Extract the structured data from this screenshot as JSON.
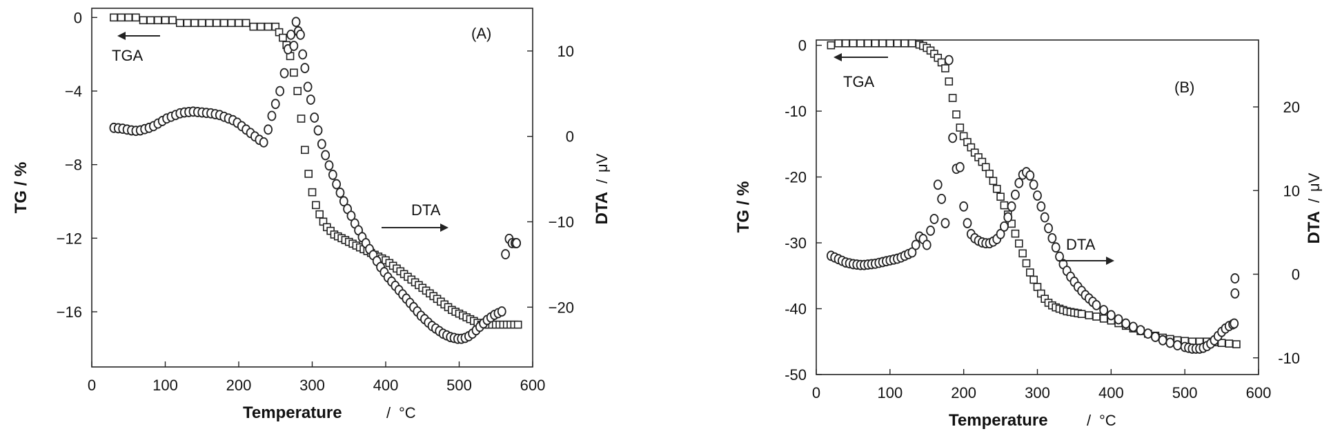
{
  "chart_data": [
    {
      "type": "scatter",
      "panel_label": "(A)",
      "xlabel": "Temperature",
      "xunit": "°C",
      "ylabel": "TG / %",
      "y2label": "DTA",
      "y2unit": "μV",
      "xlim": [
        0,
        600
      ],
      "ylim": [
        -19,
        0.5
      ],
      "y2lim": [
        -27,
        15
      ],
      "xticks": [
        "0",
        "100",
        "200",
        "300",
        "400",
        "500",
        "600"
      ],
      "yticks": [
        "0",
        "−4",
        "−8",
        "−12",
        "−16"
      ],
      "y2ticks": [
        "10",
        "0",
        "−10",
        "−20"
      ],
      "annotations": [
        {
          "text": "TGA",
          "arrow": "left"
        },
        {
          "text": "DTA",
          "arrow": "right"
        }
      ],
      "series": [
        {
          "name": "TGA",
          "marker": "square",
          "axis": "left",
          "x": [
            30,
            40,
            50,
            60,
            70,
            80,
            90,
            100,
            110,
            120,
            130,
            140,
            150,
            160,
            170,
            180,
            190,
            200,
            210,
            220,
            230,
            240,
            250,
            255,
            260,
            265,
            270,
            275,
            280,
            285,
            290,
            295,
            300,
            305,
            310,
            315,
            320,
            325,
            330,
            335,
            340,
            345,
            350,
            355,
            360,
            365,
            370,
            375,
            380,
            385,
            390,
            395,
            400,
            405,
            410,
            415,
            420,
            425,
            430,
            435,
            440,
            445,
            450,
            455,
            460,
            465,
            470,
            475,
            480,
            485,
            490,
            495,
            500,
            505,
            510,
            515,
            520,
            525,
            530,
            535,
            540,
            545,
            550,
            555,
            560,
            565,
            570,
            575,
            580
          ],
          "y": [
            0,
            0,
            0,
            0,
            -0.15,
            -0.15,
            -0.15,
            -0.15,
            -0.15,
            -0.3,
            -0.3,
            -0.3,
            -0.3,
            -0.3,
            -0.3,
            -0.3,
            -0.3,
            -0.3,
            -0.3,
            -0.5,
            -0.5,
            -0.5,
            -0.5,
            -0.8,
            -1.1,
            -1.5,
            -2.1,
            -3.0,
            -4.0,
            -5.5,
            -7.2,
            -8.5,
            -9.5,
            -10.2,
            -10.7,
            -11.1,
            -11.4,
            -11.6,
            -11.8,
            -11.9,
            -12.0,
            -12.1,
            -12.2,
            -12.3,
            -12.4,
            -12.5,
            -12.6,
            -12.7,
            -12.8,
            -12.9,
            -13.0,
            -13.1,
            -13.2,
            -13.35,
            -13.5,
            -13.65,
            -13.8,
            -13.95,
            -14.1,
            -14.25,
            -14.4,
            -14.55,
            -14.7,
            -14.85,
            -15.0,
            -15.15,
            -15.3,
            -15.45,
            -15.6,
            -15.75,
            -15.9,
            -16.0,
            -16.1,
            -16.2,
            -16.3,
            -16.4,
            -16.5,
            -16.6,
            -16.7,
            -16.7,
            -16.7,
            -16.7,
            -16.7,
            -16.7,
            -16.7,
            -16.7,
            -16.7,
            -16.7,
            -16.7
          ]
        },
        {
          "name": "DTA",
          "marker": "circle",
          "axis": "right",
          "x": [
            30,
            36,
            42,
            48,
            54,
            60,
            66,
            72,
            78,
            84,
            90,
            96,
            102,
            108,
            114,
            120,
            126,
            132,
            138,
            144,
            150,
            156,
            162,
            168,
            174,
            180,
            186,
            192,
            198,
            204,
            210,
            216,
            222,
            228,
            234,
            240,
            245,
            250,
            256,
            262,
            267,
            271,
            275,
            278,
            281,
            284,
            287,
            290,
            294,
            298,
            303,
            308,
            313,
            318,
            323,
            328,
            333,
            338,
            343,
            348,
            353,
            358,
            363,
            368,
            373,
            378,
            383,
            388,
            393,
            398,
            403,
            408,
            413,
            418,
            423,
            428,
            433,
            438,
            443,
            448,
            453,
            458,
            463,
            468,
            473,
            478,
            483,
            488,
            493,
            498,
            503,
            508,
            513,
            518,
            523,
            528,
            533,
            538,
            543,
            548,
            553,
            558,
            563,
            568,
            572,
            576,
            578,
            578
          ],
          "y": [
            1,
            0.95,
            0.9,
            0.8,
            0.7,
            0.65,
            0.7,
            0.85,
            1,
            1.2,
            1.5,
            1.8,
            2.1,
            2.3,
            2.5,
            2.7,
            2.8,
            2.85,
            2.9,
            2.85,
            2.8,
            2.75,
            2.7,
            2.6,
            2.5,
            2.3,
            2.1,
            1.9,
            1.6,
            1.2,
            0.8,
            0.4,
            0,
            -0.4,
            -0.7,
            0.8,
            2.4,
            3.8,
            5.3,
            7.4,
            10.2,
            11.9,
            10.6,
            13.4,
            12.3,
            11.9,
            9.6,
            8.0,
            5.8,
            4.3,
            2.2,
            0.7,
            -0.9,
            -2.2,
            -3.4,
            -4.5,
            -5.6,
            -6.6,
            -7.6,
            -8.5,
            -9.3,
            -10.2,
            -11.0,
            -11.8,
            -12.5,
            -13.2,
            -13.9,
            -14.6,
            -15.3,
            -15.9,
            -16.5,
            -17.0,
            -17.5,
            -18.0,
            -18.5,
            -19.0,
            -19.5,
            -20.0,
            -20.5,
            -21.0,
            -21.4,
            -21.8,
            -22.2,
            -22.5,
            -22.8,
            -23.1,
            -23.3,
            -23.5,
            -23.6,
            -23.7,
            -23.7,
            -23.6,
            -23.4,
            -23.1,
            -22.7,
            -22.3,
            -21.9,
            -21.5,
            -21.2,
            -20.9,
            -20.7,
            -20.5,
            -13.8,
            -12.0,
            -12.5,
            -12.5,
            -12.5,
            -12.5
          ]
        }
      ]
    },
    {
      "type": "scatter",
      "panel_label": "(B)",
      "xlabel": "Temperature",
      "xunit": "°C",
      "ylabel": "TG / %",
      "y2label": "DTA",
      "y2unit": "μV",
      "xlim": [
        0,
        600
      ],
      "ylim": [
        -50,
        0.8
      ],
      "y2lim": [
        -12,
        28
      ],
      "xticks": [
        "0",
        "100",
        "200",
        "300",
        "400",
        "500",
        "600"
      ],
      "yticks": [
        "0",
        "-10",
        "-20",
        "-30",
        "-40",
        "-50"
      ],
      "y2ticks": [
        "20",
        "10",
        "0",
        "-10"
      ],
      "annotations": [
        {
          "text": "TGA",
          "arrow": "left"
        },
        {
          "text": "DTA",
          "arrow": "right"
        }
      ],
      "series": [
        {
          "name": "TGA",
          "marker": "square",
          "axis": "left",
          "x": [
            20,
            30,
            40,
            50,
            60,
            70,
            80,
            90,
            100,
            110,
            120,
            130,
            140,
            145,
            150,
            155,
            160,
            165,
            170,
            175,
            180,
            185,
            190,
            195,
            200,
            205,
            210,
            215,
            220,
            225,
            230,
            235,
            240,
            245,
            250,
            255,
            260,
            265,
            270,
            275,
            280,
            285,
            290,
            295,
            300,
            305,
            310,
            315,
            320,
            325,
            330,
            335,
            340,
            345,
            350,
            355,
            360,
            370,
            380,
            390,
            400,
            410,
            420,
            430,
            440,
            450,
            460,
            470,
            480,
            490,
            500,
            510,
            520,
            530,
            540,
            550,
            560,
            570
          ],
          "y": [
            0,
            0.3,
            0.3,
            0.3,
            0.3,
            0.3,
            0.3,
            0.3,
            0.3,
            0.3,
            0.3,
            0.3,
            0.1,
            -0.1,
            -0.4,
            -0.8,
            -1.3,
            -1.9,
            -2.6,
            -3.5,
            -5.5,
            -8,
            -10.5,
            -12.5,
            -13.8,
            -14.7,
            -15.5,
            -16.3,
            -17,
            -17.7,
            -18.5,
            -19.5,
            -20.6,
            -21.8,
            -23.0,
            -24.3,
            -25.7,
            -27.1,
            -28.6,
            -30.1,
            -31.6,
            -33.1,
            -34.5,
            -35.6,
            -36.7,
            -37.7,
            -38.5,
            -39.1,
            -39.5,
            -39.8,
            -40.0,
            -40.2,
            -40.4,
            -40.5,
            -40.6,
            -40.7,
            -40.8,
            -41.0,
            -41.2,
            -41.5,
            -41.8,
            -42.2,
            -42.6,
            -43.0,
            -43.4,
            -43.8,
            -44.1,
            -44.4,
            -44.6,
            -44.8,
            -44.9,
            -45.0,
            -45.0,
            -45.0,
            -45.1,
            -45.2,
            -45.3,
            -45.4
          ]
        },
        {
          "name": "DTA",
          "marker": "circle",
          "axis": "right",
          "x": [
            20,
            25,
            30,
            35,
            40,
            45,
            50,
            55,
            60,
            65,
            70,
            75,
            80,
            85,
            90,
            95,
            100,
            105,
            110,
            115,
            120,
            125,
            130,
            135,
            140,
            145,
            150,
            155,
            160,
            165,
            170,
            175,
            180,
            185,
            190,
            195,
            200,
            205,
            210,
            215,
            220,
            225,
            230,
            235,
            240,
            245,
            250,
            255,
            260,
            265,
            270,
            275,
            280,
            285,
            290,
            295,
            300,
            305,
            310,
            315,
            320,
            325,
            330,
            335,
            340,
            345,
            350,
            355,
            360,
            365,
            370,
            375,
            380,
            390,
            400,
            410,
            420,
            430,
            440,
            450,
            460,
            470,
            480,
            490,
            500,
            505,
            510,
            515,
            520,
            525,
            530,
            535,
            540,
            545,
            550,
            555,
            560,
            565,
            567,
            568,
            568
          ],
          "y": [
            2.2,
            2.0,
            1.8,
            1.6,
            1.4,
            1.3,
            1.2,
            1.15,
            1.1,
            1.1,
            1.15,
            1.2,
            1.25,
            1.35,
            1.45,
            1.55,
            1.65,
            1.75,
            1.85,
            2.0,
            2.2,
            2.4,
            2.6,
            3.5,
            4.5,
            4.2,
            3.5,
            5.2,
            6.6,
            10.7,
            9.0,
            6.1,
            25.6,
            16.3,
            12.6,
            12.8,
            8.1,
            6.1,
            4.8,
            4.3,
            4.0,
            3.8,
            3.7,
            3.7,
            3.9,
            4.2,
            4.8,
            5.7,
            6.8,
            8.1,
            9.5,
            10.9,
            11.9,
            12.2,
            11.8,
            10.7,
            9.4,
            8.1,
            6.8,
            5.5,
            4.3,
            3.2,
            2.1,
            1.2,
            0.4,
            -0.3,
            -0.9,
            -1.5,
            -2.0,
            -2.5,
            -2.9,
            -3.3,
            -3.7,
            -4.3,
            -4.9,
            -5.4,
            -5.9,
            -6.3,
            -6.7,
            -7.1,
            -7.5,
            -7.9,
            -8.2,
            -8.5,
            -8.7,
            -8.8,
            -8.9,
            -8.9,
            -8.9,
            -8.8,
            -8.6,
            -8.3,
            -7.9,
            -7.4,
            -6.9,
            -6.5,
            -6.2,
            -6.0,
            -5.9,
            -2.3,
            -0.5
          ]
        }
      ]
    }
  ]
}
